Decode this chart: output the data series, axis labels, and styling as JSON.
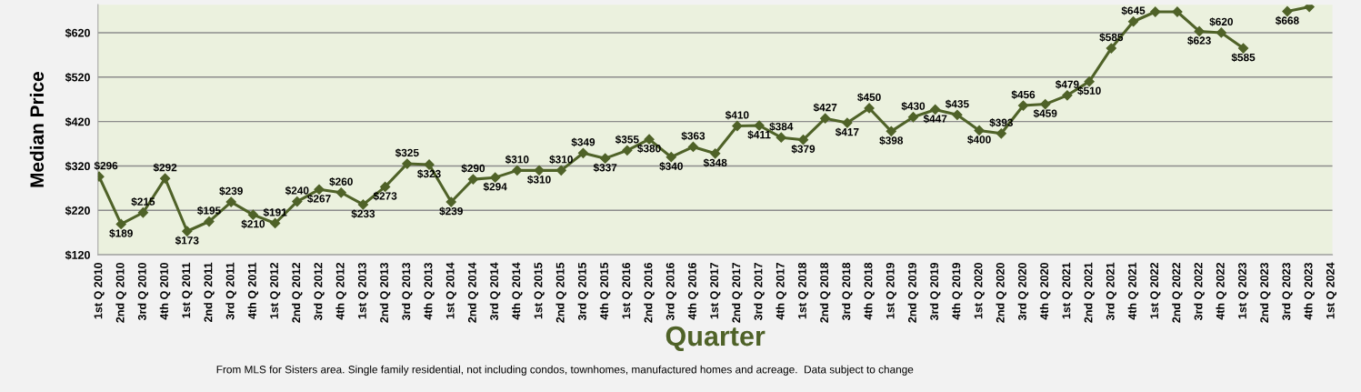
{
  "chart_data": {
    "type": "line",
    "xlabel": "Quarter",
    "ylabel": "Median Price",
    "annotations": [
      "From MLS for Sisters area. Single family residential, not including condos, townhomes, manufactured homes and acreage.  Data subject to change"
    ],
    "categories": [
      "1st Q 2010",
      "2nd Q 2010",
      "3rd Q 2010",
      "4th Q 2010",
      "1st Q 2011",
      "2nd Q 2011",
      "3rd Q 2011",
      "4th Q 2011",
      "1st Q 2012",
      "2nd Q 2012",
      "3rd Q 2012",
      "4th Q 2012",
      "1st Q 2013",
      "2nd Q 2013",
      "3rd Q 2013",
      "4th Q 2013",
      "1st Q 2014",
      "2nd Q 2014",
      "3rd Q 2014",
      "4th Q 2014",
      "1st Q 2015",
      "2nd Q 2015",
      "3rd Q 2015",
      "4th Q 2015",
      "1st Q 2016",
      "2nd Q 2016",
      "3rd Q 2016",
      "4th Q 2016",
      "1st Q 2017",
      "2nd Q 2017",
      "3rd Q 2017",
      "4th Q 2017",
      "1st Q 2018",
      "2nd Q 2018",
      "3rd Q 2018",
      "4th Q 2018",
      "1st Q 2019",
      "2nd Q 2019",
      "3rd Q 2019",
      "4th Q 2019",
      "1st Q 2020",
      "2nd Q 2020",
      "3rd Q 2020",
      "4th Q 2020",
      "1st Q 2021",
      "2nd Q 2021",
      "3rd Q 2021",
      "4th Q 2021",
      "1st Q 2022",
      "2nd Q 2022",
      "3rd Q 2022",
      "4th Q 2022",
      "1st Q 2023",
      "2nd Q 2023",
      "3rd Q 2023",
      "4th Q 2023",
      "1st Q 2024"
    ],
    "series": [
      {
        "color": "#4f6228",
        "values": [
          296,
          189,
          215,
          292,
          173,
          195,
          239,
          210,
          191,
          240,
          267,
          260,
          233,
          273,
          325,
          323,
          239,
          290,
          294,
          310,
          310,
          310,
          349,
          337,
          355,
          380,
          340,
          363,
          348,
          410,
          411,
          384,
          379,
          427,
          417,
          450,
          398,
          430,
          447,
          435,
          400,
          393,
          456,
          459,
          479,
          510,
          585,
          645,
          667,
          667,
          623,
          620,
          585,
          null,
          668,
          678,
          null
        ],
        "value_labels": [
          "$296",
          "$189",
          "$215",
          "$292",
          "$173",
          "$195",
          "$239",
          "$210",
          "$191",
          "$240",
          "$267",
          "$260",
          "$233",
          "$273",
          "$325",
          "$323",
          "$239",
          "$290",
          "$294",
          "$310",
          "$310",
          "$310",
          "$349",
          "$337",
          "$355",
          "$380",
          "$340",
          "$363",
          "$348",
          "$410",
          "$411",
          "$384",
          "$379",
          "$427",
          "$417",
          "$450",
          "$398",
          "$430",
          "$447",
          "$435",
          "$400",
          "$393",
          "$456",
          "$459",
          "$479",
          "$510",
          "$585",
          "$645",
          null,
          null,
          "$623",
          "$620",
          "$585",
          null,
          "$668",
          null,
          null
        ]
      }
    ],
    "ylim": [
      120,
      683
    ],
    "yticks": [
      {
        "value": 120,
        "label": "$120"
      },
      {
        "value": 220,
        "label": "$220"
      },
      {
        "value": 320,
        "label": "$320"
      },
      {
        "value": 420,
        "label": "$420"
      },
      {
        "value": 520,
        "label": "$520"
      },
      {
        "value": 620,
        "label": "$620"
      }
    ],
    "grid": "y",
    "legend": false,
    "marker": "diamond",
    "line_style": "solid"
  }
}
